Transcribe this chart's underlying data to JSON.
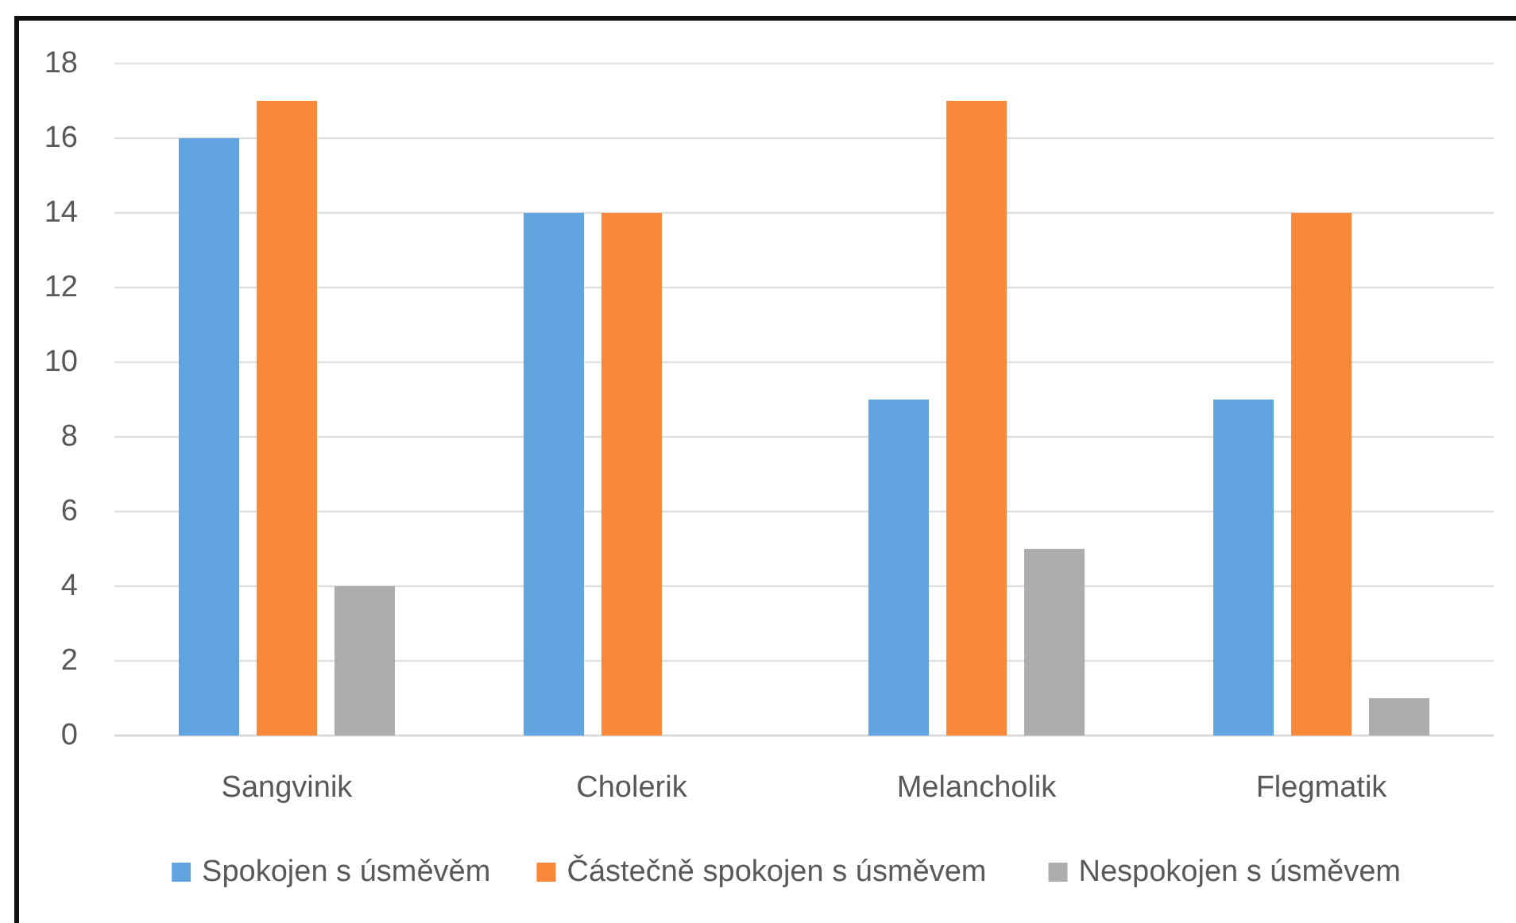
{
  "chart_data": {
    "type": "bar",
    "categories": [
      "Sangvinik",
      "Cholerik",
      "Melancholik",
      "Flegmatik"
    ],
    "series": [
      {
        "name": "Spokojen s úsměvěm",
        "color": "#62a4df",
        "values": [
          16,
          14,
          9,
          9
        ]
      },
      {
        "name": "Částečně spokojen s úsměvem",
        "color": "#f8883a",
        "values": [
          17,
          14,
          17,
          14
        ]
      },
      {
        "name": "Nespokojen s úsměvem",
        "color": "#adadad",
        "values": [
          4,
          0,
          5,
          1
        ]
      }
    ],
    "ylim": [
      0,
      18
    ],
    "yticks": [
      0,
      2,
      4,
      6,
      8,
      10,
      12,
      14,
      16,
      18
    ],
    "grid": "y",
    "legend": "bottom"
  }
}
